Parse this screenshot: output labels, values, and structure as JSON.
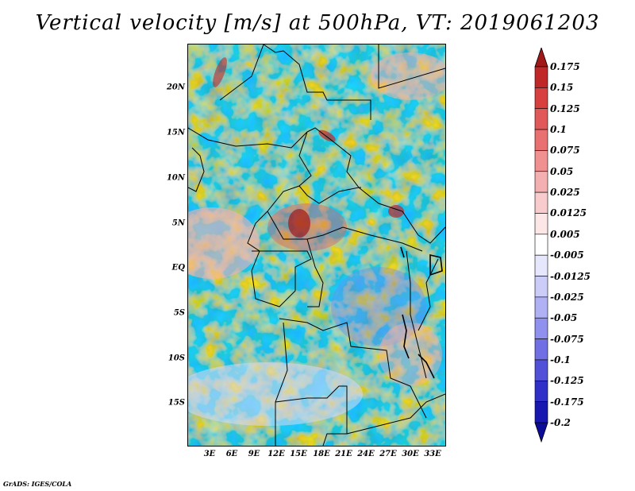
{
  "title": "Vertical velocity [m/s] at 500hPa, VT: 2019061203",
  "credit": "GrADS: IGES/COLA",
  "map": {
    "variable": "Vertical velocity",
    "units": "m/s",
    "level": "500hPa",
    "valid_time": "2019061203",
    "region": "Central Africa",
    "lat_labels": [
      "20N",
      "15N",
      "10N",
      "5N",
      "EQ",
      "5S",
      "10S",
      "15S"
    ],
    "lon_labels": [
      "3E",
      "6E",
      "9E",
      "12E",
      "15E",
      "18E",
      "21E",
      "24E",
      "27E",
      "30E",
      "33E"
    ]
  },
  "colorbar": {
    "labels": [
      "0.175",
      "0.15",
      "0.125",
      "0.1",
      "0.075",
      "0.05",
      "0.025",
      "0.0125",
      "0.005",
      "-0.005",
      "-0.0125",
      "-0.025",
      "-0.05",
      "-0.075",
      "-0.1",
      "-0.125",
      "-0.175",
      "-0.2"
    ],
    "colors": [
      "#a01818",
      "#c02828",
      "#d84040",
      "#e05858",
      "#e87070",
      "#f09090",
      "#f4b0b0",
      "#f8cccc",
      "#fce6e6",
      "#ffffff",
      "#e6e6fc",
      "#ccccf8",
      "#b0b0f4",
      "#9090ee",
      "#7070e4",
      "#5050d8",
      "#3030c8",
      "#1818b0",
      "#0c0c98"
    ]
  }
}
